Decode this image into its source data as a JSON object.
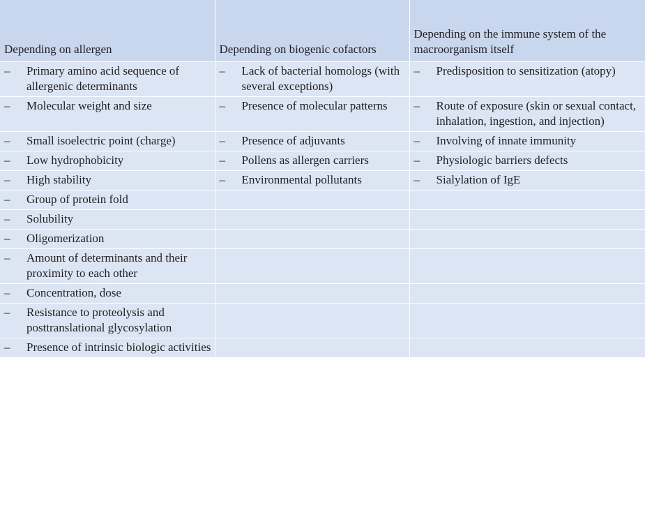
{
  "table": {
    "headers": [
      "Depending on allergen",
      "Depending on biogenic cofactors",
      "Depending on the immune system of the macroorganism itself"
    ],
    "dash": "–",
    "rows": [
      [
        "Primary amino acid sequence of allergenic determinants",
        "Lack of bacterial homologs (with several exceptions)",
        "Predisposition to sensitization (atopy)"
      ],
      [
        "Molecular weight and size",
        "Presence of molecular patterns",
        "Route of exposure (skin or sexual contact, inhalation, ingestion, and injection)"
      ],
      [
        "Small isoelectric point (charge)",
        "Presence of adjuvants",
        "Involving of innate immunity"
      ],
      [
        "Low hydrophobicity",
        "Pollens as allergen carriers",
        "Physiologic barriers defects"
      ],
      [
        "High stability",
        "Environmental pollutants",
        "Sialylation of IgE"
      ],
      [
        "Group of protein fold",
        "",
        ""
      ],
      [
        "Solubility",
        "",
        ""
      ],
      [
        "Oligomerization",
        "",
        ""
      ],
      [
        "Amount of determinants and their proximity to each other",
        "",
        ""
      ],
      [
        "Concentration, dose",
        "",
        ""
      ],
      [
        "Resistance to proteolysis and posttranslational glycosylation",
        "",
        ""
      ],
      [
        "Presence of intrinsic biologic activities",
        "",
        ""
      ]
    ]
  }
}
